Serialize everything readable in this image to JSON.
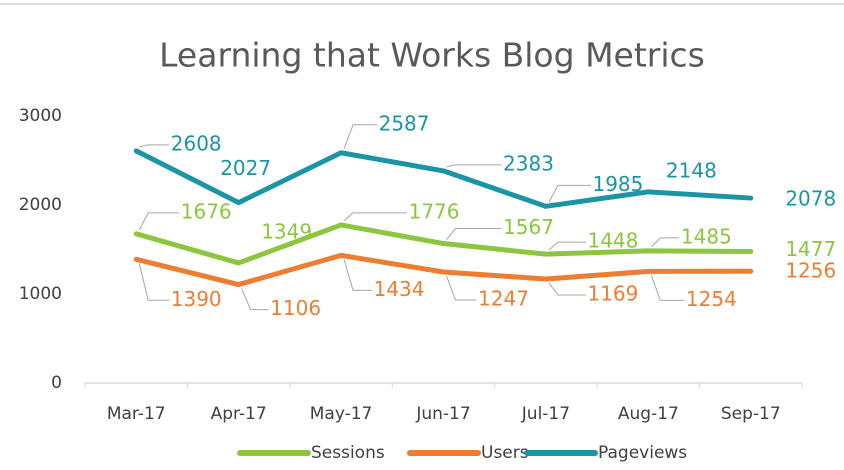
{
  "chart_data": {
    "type": "line",
    "title": "Learning that Works Blog Metrics",
    "categories": [
      "Mar-17",
      "Apr-17",
      "May-17",
      "Jun-17",
      "Jul-17",
      "Aug-17",
      "Sep-17"
    ],
    "series": [
      {
        "name": "Sessions",
        "color": "#8cc63f",
        "values": [
          1676,
          1349,
          1776,
          1567,
          1448,
          1485,
          1477
        ]
      },
      {
        "name": "Users",
        "color": "#ed7d31",
        "values": [
          1390,
          1106,
          1434,
          1247,
          1169,
          1254,
          1256
        ]
      },
      {
        "name": "Pageviews",
        "color": "#1b95a6",
        "values": [
          2608,
          2027,
          2587,
          2383,
          1985,
          2148,
          2078
        ]
      }
    ],
    "ylim": [
      0,
      3000
    ],
    "yticks": [
      0,
      1000,
      2000,
      3000
    ],
    "grid": false
  }
}
